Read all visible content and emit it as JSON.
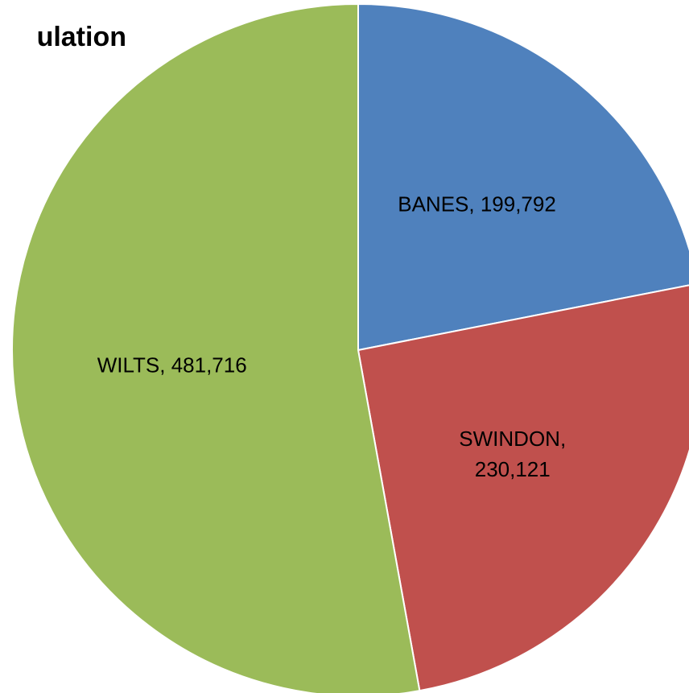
{
  "chart_data": {
    "type": "pie",
    "title": "ulation",
    "categories": [
      "BANES",
      "SWINDON",
      "WILTS"
    ],
    "values": [
      199792,
      230121,
      481716
    ],
    "value_labels": [
      "BANES, 199,792",
      "SWINDON, 230,121",
      "WILTS, 481,716"
    ],
    "colors": [
      "#4f81bd",
      "#c0504d",
      "#9bbb59"
    ]
  }
}
